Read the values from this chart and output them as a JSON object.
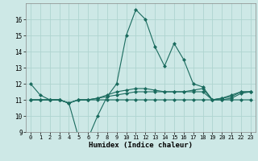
{
  "xlabel": "Humidex (Indice chaleur)",
  "bg_color": "#cde8e6",
  "line_color": "#1a6b5e",
  "grid_color": "#afd4d0",
  "xlim": [
    -0.5,
    23.5
  ],
  "ylim": [
    9,
    17
  ],
  "yticks": [
    9,
    10,
    11,
    12,
    13,
    14,
    15,
    16
  ],
  "xticks": [
    0,
    1,
    2,
    3,
    4,
    5,
    6,
    7,
    8,
    9,
    10,
    11,
    12,
    13,
    14,
    15,
    16,
    17,
    18,
    19,
    20,
    21,
    22,
    23
  ],
  "series": [
    [
      12.0,
      11.3,
      11.0,
      11.0,
      10.8,
      8.7,
      8.6,
      10.0,
      11.2,
      12.0,
      15.0,
      16.6,
      16.0,
      14.3,
      13.1,
      14.5,
      13.5,
      12.0,
      11.8,
      11.0,
      11.1,
      11.3,
      11.5,
      11.5
    ],
    [
      11.0,
      11.0,
      11.0,
      11.0,
      10.8,
      11.0,
      11.0,
      11.0,
      11.0,
      11.0,
      11.0,
      11.0,
      11.0,
      11.0,
      11.0,
      11.0,
      11.0,
      11.0,
      11.0,
      11.0,
      11.0,
      11.0,
      11.0,
      11.0
    ],
    [
      11.0,
      11.0,
      11.0,
      11.0,
      10.8,
      11.0,
      11.0,
      11.1,
      11.2,
      11.3,
      11.4,
      11.5,
      11.5,
      11.5,
      11.5,
      11.5,
      11.5,
      11.5,
      11.5,
      11.0,
      11.0,
      11.1,
      11.4,
      11.5
    ],
    [
      11.0,
      11.0,
      11.0,
      11.0,
      10.8,
      11.0,
      11.0,
      11.1,
      11.3,
      11.5,
      11.6,
      11.7,
      11.7,
      11.6,
      11.5,
      11.5,
      11.5,
      11.6,
      11.7,
      11.0,
      11.1,
      11.2,
      11.5,
      11.5
    ]
  ]
}
